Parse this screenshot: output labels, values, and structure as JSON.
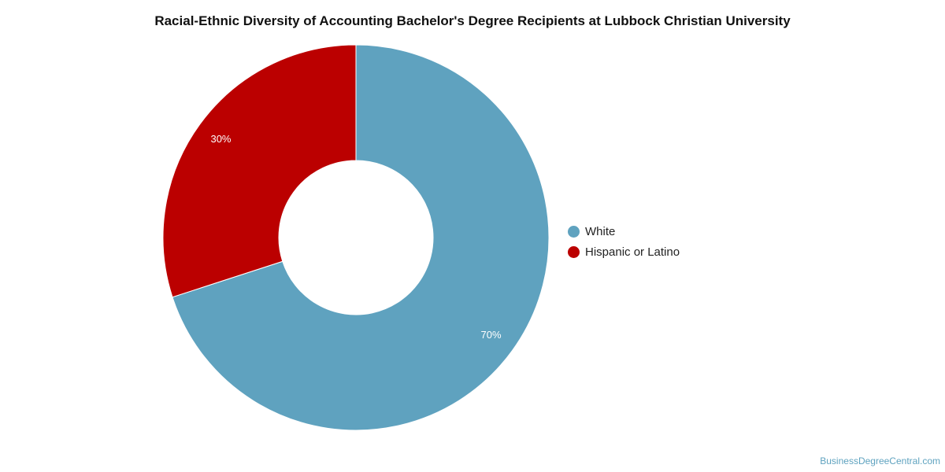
{
  "chart_data": {
    "type": "pie",
    "title": "Racial-Ethnic Diversity of Accounting Bachelor's Degree Recipients at Lubbock Christian University",
    "categories": [
      "White",
      "Hispanic or Latino"
    ],
    "values": [
      70,
      30
    ],
    "labels": [
      "70%",
      "30%"
    ],
    "colors": [
      "#5fa2bf",
      "#bb0000"
    ],
    "donut": true,
    "legend": "right"
  },
  "credit": "BusinessDegreeCentral.com"
}
